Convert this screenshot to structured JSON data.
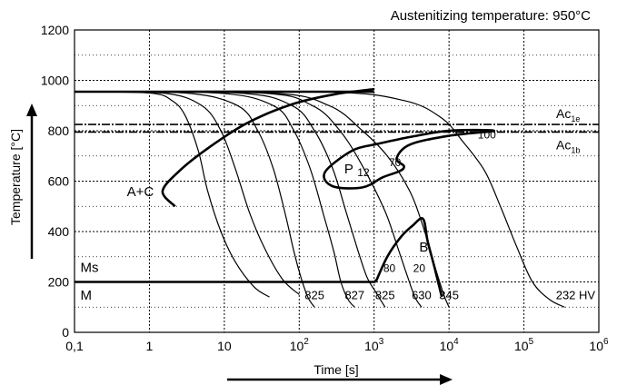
{
  "chart_data": {
    "type": "line",
    "title": "Austenitizing temperature: 950°C",
    "xlabel": "Time [s]",
    "ylabel": "Temperature [°C]",
    "x_scale": "log",
    "xlim": [
      0.1,
      1000000
    ],
    "ylim": [
      0,
      1200
    ],
    "grid": true,
    "x_ticks": [
      {
        "value": 0.1,
        "label": "0,1"
      },
      {
        "value": 1,
        "label": "1"
      },
      {
        "value": 10,
        "label": "10"
      },
      {
        "value": 100,
        "base": "10",
        "exp": "2"
      },
      {
        "value": 1000,
        "base": "10",
        "exp": "3"
      },
      {
        "value": 10000,
        "base": "10",
        "exp": "4"
      },
      {
        "value": 100000,
        "base": "10",
        "exp": "5"
      },
      {
        "value": 1000000,
        "base": "10",
        "exp": "6"
      }
    ],
    "y_ticks": [
      0,
      200,
      400,
      600,
      800,
      1000,
      1200
    ],
    "reference_lines": [
      {
        "name": "Ac",
        "sub": "1e",
        "y": 825
      },
      {
        "name": "Ac",
        "sub": "1b",
        "y": 795
      },
      {
        "name": "Ms",
        "y": 200
      }
    ],
    "cooling_curves": [
      {
        "hardness": "",
        "points": [
          [
            0.1,
            955
          ],
          [
            1,
            950
          ],
          [
            2,
            920
          ],
          [
            3,
            860
          ],
          [
            4.5,
            720
          ],
          [
            6,
            560
          ],
          [
            9,
            400
          ],
          [
            14,
            280
          ],
          [
            25,
            180
          ],
          [
            40,
            140
          ]
        ]
      },
      {
        "hardness": "",
        "points": [
          [
            0.1,
            955
          ],
          [
            1.5,
            950
          ],
          [
            5,
            900
          ],
          [
            9,
            800
          ],
          [
            14,
            650
          ],
          [
            22,
            470
          ],
          [
            35,
            330
          ],
          [
            60,
            210
          ],
          [
            100,
            150
          ]
        ]
      },
      {
        "hardness": "825",
        "points": [
          [
            0.1,
            955
          ],
          [
            3,
            950
          ],
          [
            15,
            900
          ],
          [
            28,
            800
          ],
          [
            45,
            650
          ],
          [
            65,
            470
          ],
          [
            85,
            320
          ],
          [
            105,
            220
          ],
          [
            130,
            140
          ],
          [
            160,
            100
          ]
        ]
      },
      {
        "hardness": "827",
        "points": [
          [
            0.1,
            955
          ],
          [
            8,
            950
          ],
          [
            45,
            900
          ],
          [
            85,
            800
          ],
          [
            140,
            650
          ],
          [
            210,
            470
          ],
          [
            290,
            320
          ],
          [
            360,
            200
          ],
          [
            450,
            130
          ],
          [
            550,
            100
          ]
        ]
      },
      {
        "hardness": "825",
        "points": [
          [
            0.1,
            955
          ],
          [
            15,
            950
          ],
          [
            80,
            900
          ],
          [
            160,
            800
          ],
          [
            280,
            650
          ],
          [
            420,
            480
          ],
          [
            600,
            330
          ],
          [
            800,
            220
          ],
          [
            1050,
            160
          ],
          [
            1400,
            100
          ]
        ]
      },
      {
        "hardness": "630",
        "points": [
          [
            0.1,
            955
          ],
          [
            30,
            950
          ],
          [
            150,
            900
          ],
          [
            350,
            800
          ],
          [
            700,
            660
          ],
          [
            1400,
            480
          ],
          [
            2100,
            330
          ],
          [
            2800,
            220
          ],
          [
            3500,
            140
          ],
          [
            4300,
            100
          ]
        ]
      },
      {
        "hardness": "345",
        "points": [
          [
            0.1,
            955
          ],
          [
            40,
            950
          ],
          [
            250,
            900
          ],
          [
            700,
            800
          ],
          [
            1500,
            700
          ],
          [
            3000,
            560
          ],
          [
            4500,
            420
          ],
          [
            6500,
            260
          ],
          [
            8500,
            150
          ],
          [
            10000,
            100
          ]
        ]
      },
      {
        "hardness": "232 HV",
        "points": [
          [
            0.1,
            955
          ],
          [
            200,
            955
          ],
          [
            2500,
            920
          ],
          [
            8000,
            850
          ],
          [
            15000,
            760
          ],
          [
            30000,
            640
          ],
          [
            50000,
            490
          ],
          [
            80000,
            340
          ],
          [
            130000,
            200
          ],
          [
            220000,
            130
          ],
          [
            350000,
            100
          ]
        ]
      }
    ],
    "regions": [
      {
        "label": "A+C",
        "x": 0.5,
        "y": 540
      },
      {
        "label": "P",
        "x": 400,
        "y": 630
      },
      {
        "label": "B",
        "x": 4000,
        "y": 320
      },
      {
        "label": "M",
        "x": 0.12,
        "y": 130
      },
      {
        "label": "Ms",
        "x": 0.12,
        "y": 240
      }
    ],
    "phase_percentages": [
      {
        "label": "12",
        "x": 720,
        "y": 620
      },
      {
        "label": "70",
        "x": 1900,
        "y": 660
      },
      {
        "label": "100",
        "x": 32000,
        "y": 770
      },
      {
        "label": "80",
        "x": 1600,
        "y": 240
      },
      {
        "label": "20",
        "x": 4000,
        "y": 240
      }
    ],
    "boundaries": [
      {
        "name": "carbide-start",
        "points": [
          [
            2.2,
            500
          ],
          [
            1.5,
            560
          ],
          [
            2.5,
            640
          ],
          [
            6,
            730
          ],
          [
            20,
            830
          ],
          [
            80,
            905
          ],
          [
            300,
            945
          ],
          [
            1000,
            965
          ]
        ]
      },
      {
        "name": "pearlite",
        "points": [
          [
            1000,
            745
          ],
          [
            3000,
            775
          ],
          [
            10000,
            800
          ],
          [
            40000,
            800
          ],
          [
            10000,
            780
          ],
          [
            3000,
            745
          ],
          [
            2000,
            690
          ],
          [
            2500,
            660
          ],
          [
            2200,
            640
          ],
          [
            1300,
            615
          ],
          [
            700,
            575
          ],
          [
            280,
            580
          ],
          [
            220,
            635
          ],
          [
            500,
            720
          ],
          [
            1000,
            745
          ]
        ]
      },
      {
        "name": "bainite",
        "points": [
          [
            1050,
            200
          ],
          [
            1500,
            300
          ],
          [
            2300,
            380
          ],
          [
            3300,
            425
          ],
          [
            4500,
            450
          ],
          [
            5200,
            360
          ],
          [
            6500,
            250
          ],
          [
            8000,
            140
          ]
        ]
      }
    ],
    "arrows": [
      {
        "direction": "up",
        "along": "temperature axis"
      },
      {
        "direction": "right",
        "along": "time axis"
      }
    ]
  }
}
